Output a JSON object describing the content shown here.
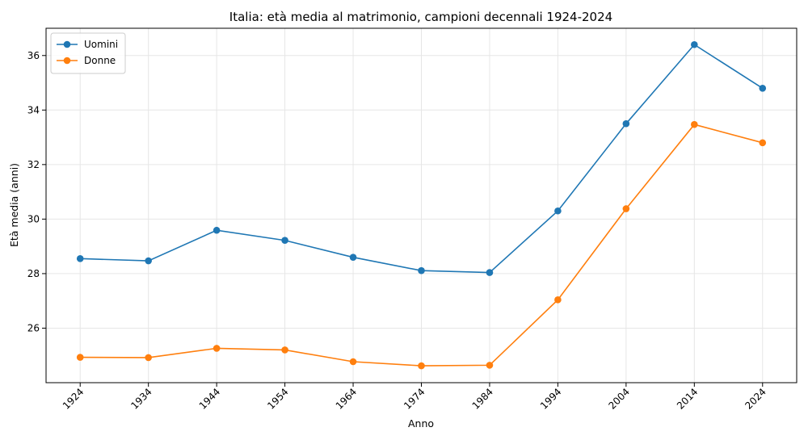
{
  "chart_data": {
    "type": "line",
    "title": "Italia: età media al matrimonio, campioni decennali 1924-2024",
    "xlabel": "Anno",
    "ylabel": "Età media (anni)",
    "x": [
      1924,
      1934,
      1944,
      1954,
      1964,
      1974,
      1984,
      1994,
      2004,
      2014,
      2024
    ],
    "x_tick_labels": [
      "1924",
      "1934",
      "1944",
      "1954",
      "1964",
      "1974",
      "1984",
      "1994",
      "2004",
      "2014",
      "2024"
    ],
    "y_ticks": [
      26,
      28,
      30,
      32,
      34,
      36
    ],
    "y_tick_labels": [
      "26",
      "28",
      "30",
      "32",
      "34",
      "36"
    ],
    "xlim": [
      1919,
      2029
    ],
    "ylim": [
      24.0,
      37.0
    ],
    "grid": true,
    "legend_position": "top-left",
    "series": [
      {
        "name": "Uomini",
        "color": "#1f77b4",
        "values": [
          28.55,
          28.47,
          29.59,
          29.22,
          28.6,
          28.11,
          28.04,
          30.3,
          33.5,
          36.4,
          34.8
        ]
      },
      {
        "name": "Donne",
        "color": "#ff7f0e",
        "values": [
          24.93,
          24.92,
          25.26,
          25.2,
          24.77,
          24.62,
          24.64,
          27.04,
          30.38,
          33.47,
          32.8
        ]
      }
    ]
  }
}
